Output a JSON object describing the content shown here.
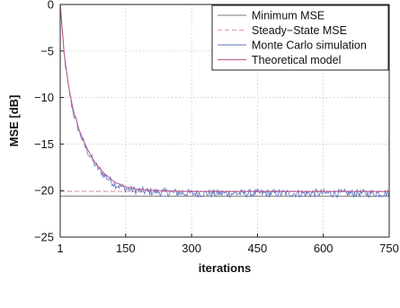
{
  "chart_data": {
    "type": "line",
    "title": "",
    "xlabel": "iterations",
    "ylabel": "MSE [dB]",
    "xlim": [
      1,
      750
    ],
    "ylim": [
      -25,
      0
    ],
    "xticks": [
      1,
      150,
      300,
      450,
      600,
      750
    ],
    "yticks": [
      0,
      -5,
      -10,
      -15,
      -20,
      -25
    ],
    "grid": true,
    "legend_position": "top-right",
    "series": [
      {
        "name": "Minimum MSE",
        "style": "solid",
        "color": "#7a7a7a",
        "constant": -20.6
      },
      {
        "name": "Steady−State MSE",
        "style": "dashed",
        "color": "#e39aa0",
        "constant": -20.1
      },
      {
        "name": "Monte Carlo simulation",
        "style": "noisy",
        "color": "#5b74c4",
        "x": [
          1,
          10,
          20,
          30,
          45,
          60,
          80,
          100,
          125,
          150,
          175,
          200,
          250,
          300,
          400,
          500,
          600,
          750
        ],
        "values": [
          0,
          -5.5,
          -9.0,
          -11.5,
          -13.8,
          -15.5,
          -17.2,
          -18.3,
          -19.3,
          -19.8,
          -20.0,
          -20.1,
          -20.2,
          -20.3,
          -20.3,
          -20.3,
          -20.3,
          -20.3
        ]
      },
      {
        "name": "Theoretical model",
        "style": "solid",
        "color": "#c0558c",
        "x": [
          1,
          10,
          20,
          30,
          45,
          60,
          80,
          100,
          125,
          150,
          175,
          200,
          250,
          300,
          400,
          500,
          600,
          750
        ],
        "values": [
          0,
          -5.3,
          -8.8,
          -11.2,
          -13.6,
          -15.3,
          -17.0,
          -18.1,
          -19.1,
          -19.6,
          -19.85,
          -19.95,
          -20.05,
          -20.1,
          -20.1,
          -20.1,
          -20.1,
          -20.1
        ]
      }
    ],
    "ytick_labels": [
      "0",
      "−5",
      "−10",
      "−15",
      "−20",
      "−25"
    ],
    "xtick_labels": [
      "1",
      "150",
      "300",
      "450",
      "600",
      "750"
    ]
  }
}
